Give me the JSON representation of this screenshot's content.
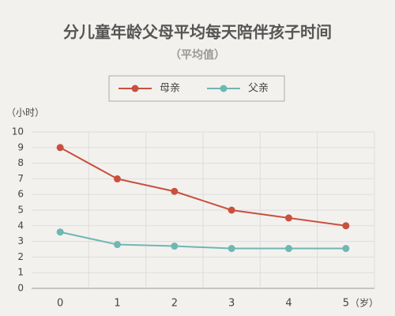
{
  "chart_data": {
    "type": "line",
    "title": "分儿童年龄父母平均每天陪伴孩子时间",
    "subtitle": "（平均值）",
    "y_label": "（小时）",
    "x_label": "（岁）",
    "categories": [
      "0",
      "1",
      "2",
      "3",
      "4",
      "5"
    ],
    "series": [
      {
        "name": "母亲",
        "color": "#c9503e",
        "values": [
          9,
          7,
          6.2,
          5,
          4.5,
          4
        ]
      },
      {
        "name": "父亲",
        "color": "#6fb7b3",
        "values": [
          3.6,
          2.8,
          2.7,
          2.55,
          2.55,
          2.55
        ]
      }
    ],
    "ylim": [
      0,
      10
    ],
    "yticks": [
      0,
      1,
      2,
      3,
      4,
      5,
      6,
      7,
      8,
      9,
      10
    ],
    "grid": true,
    "legend": "top"
  }
}
